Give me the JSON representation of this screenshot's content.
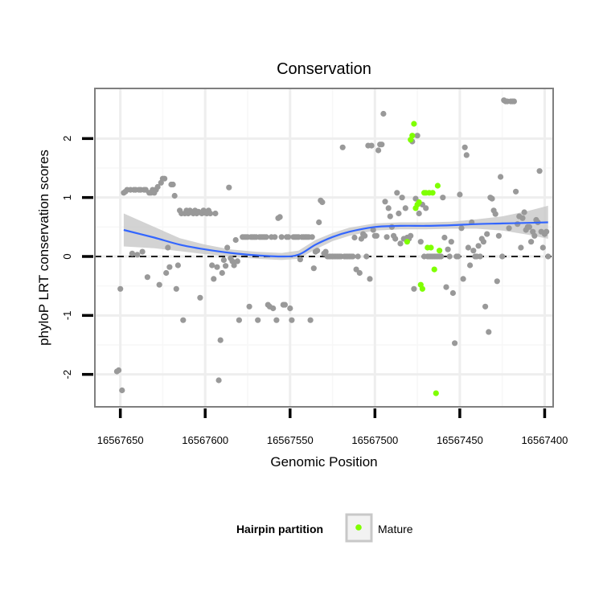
{
  "chart_data": {
    "type": "scatter",
    "title": "Conservation",
    "xlabel": "Genomic Position",
    "ylabel": "phyloP LRT conservation scores",
    "x_reversed": true,
    "xlim": [
      16567665,
      16567395
    ],
    "ylim": [
      -2.55,
      2.85
    ],
    "x_ticks": [
      16567650,
      16567600,
      16567550,
      16567500,
      16567450,
      16567400
    ],
    "x_tick_labels": [
      "16567650",
      "16567600",
      "16567550",
      "16567500",
      "16567450",
      "16567400"
    ],
    "y_ticks": [
      -2,
      -1,
      0,
      1,
      2
    ],
    "y_tick_labels": [
      "-2",
      "-1",
      "0",
      "1",
      "2"
    ],
    "reference_line": {
      "y": 0,
      "style": "dashed"
    },
    "grid": true,
    "colors": {
      "other": "#999999",
      "mature": "#7fff00",
      "smooth": "#3366ff",
      "band": "#c8c8c8",
      "panel_border": "#7f7f7f"
    },
    "legend": {
      "title": "Hairpin partition",
      "position": "bottom",
      "entries": [
        "Mature"
      ]
    },
    "series": [
      {
        "name": "",
        "color": "#999999",
        "points": [
          [
            16567652,
            -1.95
          ],
          [
            16567651,
            -1.93
          ],
          [
            16567650,
            -0.55
          ],
          [
            16567649,
            -2.27
          ],
          [
            16567648,
            1.08
          ],
          [
            16567647,
            1.1
          ],
          [
            16567646,
            1.13
          ],
          [
            16567644,
            1.13
          ],
          [
            16567643,
            0.05
          ],
          [
            16567642,
            1.13
          ],
          [
            16567641,
            1.13
          ],
          [
            16567640,
            0.03
          ],
          [
            16567639,
            1.13
          ],
          [
            16567638,
            1.13
          ],
          [
            16567637,
            0.08
          ],
          [
            16567636,
            1.13
          ],
          [
            16567635,
            1.13
          ],
          [
            16567634,
            -0.35
          ],
          [
            16567633,
            1.08
          ],
          [
            16567632,
            1.08
          ],
          [
            16567631,
            1.13
          ],
          [
            16567630,
            1.08
          ],
          [
            16567629,
            1.13
          ],
          [
            16567628,
            1.18
          ],
          [
            16567627,
            -0.48
          ],
          [
            16567626,
            1.25
          ],
          [
            16567625,
            1.32
          ],
          [
            16567624,
            1.32
          ],
          [
            16567623,
            -0.28
          ],
          [
            16567622,
            0.15
          ],
          [
            16567621,
            -0.18
          ],
          [
            16567620,
            1.22
          ],
          [
            16567619,
            1.22
          ],
          [
            16567618,
            1.03
          ],
          [
            16567617,
            -0.55
          ],
          [
            16567616,
            -0.15
          ],
          [
            16567615,
            0.78
          ],
          [
            16567614,
            0.73
          ],
          [
            16567613,
            -1.08
          ],
          [
            16567612,
            0.73
          ],
          [
            16567611,
            0.78
          ],
          [
            16567610,
            0.73
          ],
          [
            16567609,
            0.78
          ],
          [
            16567608,
            0.75
          ],
          [
            16567607,
            0.73
          ],
          [
            16567606,
            0.78
          ],
          [
            16567605,
            0.73
          ],
          [
            16567604,
            0.76
          ],
          [
            16567603,
            -0.7
          ],
          [
            16567602,
            0.73
          ],
          [
            16567601,
            0.78
          ],
          [
            16567600,
            0.74
          ],
          [
            16567599,
            0.73
          ],
          [
            16567598,
            0.78
          ],
          [
            16567597,
            0.73
          ],
          [
            16567596,
            -0.15
          ],
          [
            16567595,
            -0.38
          ],
          [
            16567594,
            0.73
          ],
          [
            16567593,
            -0.18
          ],
          [
            16567592,
            -2.1
          ],
          [
            16567591,
            -1.42
          ],
          [
            16567590,
            -0.28
          ],
          [
            16567589,
            -0.06
          ],
          [
            16567588,
            -0.16
          ],
          [
            16567587,
            0.15
          ],
          [
            16567586,
            1.17
          ],
          [
            16567585,
            -0.03
          ],
          [
            16567584,
            -0.08
          ],
          [
            16567583,
            -0.15
          ],
          [
            16567582,
            0.28
          ],
          [
            16567581,
            -0.08
          ],
          [
            16567580,
            -1.08
          ],
          [
            16567578,
            0.33
          ],
          [
            16567577,
            0.33
          ],
          [
            16567576,
            0.33
          ],
          [
            16567575,
            0.33
          ],
          [
            16567574,
            -0.85
          ],
          [
            16567573,
            0.33
          ],
          [
            16567572,
            0.33
          ],
          [
            16567571,
            0.33
          ],
          [
            16567570,
            0.33
          ],
          [
            16567569,
            -1.08
          ],
          [
            16567568,
            0.33
          ],
          [
            16567567,
            0.33
          ],
          [
            16567566,
            0.33
          ],
          [
            16567565,
            0.33
          ],
          [
            16567564,
            0.33
          ],
          [
            16567563,
            -0.82
          ],
          [
            16567562,
            -0.85
          ],
          [
            16567561,
            0.33
          ],
          [
            16567560,
            -0.88
          ],
          [
            16567559,
            0.33
          ],
          [
            16567558,
            -1.08
          ],
          [
            16567557,
            0.65
          ],
          [
            16567556,
            0.67
          ],
          [
            16567555,
            0.33
          ],
          [
            16567554,
            -0.82
          ],
          [
            16567553,
            -0.82
          ],
          [
            16567552,
            0.33
          ],
          [
            16567551,
            0.33
          ],
          [
            16567550,
            -0.88
          ],
          [
            16567549,
            -1.08
          ],
          [
            16567548,
            0.33
          ],
          [
            16567547,
            0.33
          ],
          [
            16567546,
            0.33
          ],
          [
            16567545,
            0.33
          ],
          [
            16567544,
            -0.05
          ],
          [
            16567543,
            0.33
          ],
          [
            16567542,
            0.33
          ],
          [
            16567541,
            0.33
          ],
          [
            16567540,
            0.33
          ],
          [
            16567539,
            0.33
          ],
          [
            16567538,
            -1.08
          ],
          [
            16567537,
            0.33
          ],
          [
            16567536,
            -0.2
          ],
          [
            16567535,
            0.08
          ],
          [
            16567534,
            0.1
          ],
          [
            16567533,
            0.58
          ],
          [
            16567532,
            0.95
          ],
          [
            16567531,
            0.92
          ],
          [
            16567530,
            0.05
          ],
          [
            16567529,
            0.08
          ],
          [
            16567528,
            0.0
          ],
          [
            16567527,
            0.0
          ],
          [
            16567526,
            0.0
          ],
          [
            16567525,
            0.0
          ],
          [
            16567524,
            0.0
          ],
          [
            16567523,
            0.0
          ],
          [
            16567522,
            0.0
          ],
          [
            16567521,
            0.0
          ],
          [
            16567520,
            0.0
          ],
          [
            16567519,
            1.85
          ],
          [
            16567518,
            0.0
          ],
          [
            16567517,
            0.0
          ],
          [
            16567516,
            0.0
          ],
          [
            16567515,
            0.0
          ],
          [
            16567514,
            0.0
          ],
          [
            16567513,
            0.0
          ],
          [
            16567512,
            0.32
          ],
          [
            16567511,
            -0.22
          ],
          [
            16567510,
            0.0
          ],
          [
            16567509,
            -0.28
          ],
          [
            16567508,
            0.3
          ],
          [
            16567507,
            0.38
          ],
          [
            16567506,
            0.35
          ],
          [
            16567505,
            0.0
          ],
          [
            16567504,
            1.88
          ],
          [
            16567503,
            -0.38
          ],
          [
            16567502,
            1.88
          ],
          [
            16567501,
            0.45
          ],
          [
            16567500,
            0.35
          ],
          [
            16567499,
            0.35
          ],
          [
            16567498,
            1.8
          ],
          [
            16567497,
            1.9
          ],
          [
            16567496,
            1.9
          ],
          [
            16567495,
            2.42
          ],
          [
            16567494,
            0.93
          ],
          [
            16567493,
            0.33
          ],
          [
            16567492,
            0.82
          ],
          [
            16567491,
            0.68
          ],
          [
            16567490,
            0.5
          ],
          [
            16567489,
            0.35
          ],
          [
            16567488,
            0.3
          ],
          [
            16567487,
            1.08
          ],
          [
            16567486,
            0.73
          ],
          [
            16567485,
            0.22
          ],
          [
            16567484,
            1.0
          ],
          [
            16567483,
            0.3
          ],
          [
            16567482,
            0.82
          ],
          [
            16567481,
            0.32
          ],
          [
            16567480,
            0.3
          ],
          [
            16567479,
            0.35
          ],
          [
            16567478,
            1.95
          ],
          [
            16567477,
            -0.55
          ],
          [
            16567476,
            0.98
          ],
          [
            16567475,
            2.05
          ],
          [
            16567474,
            0.73
          ],
          [
            16567473,
            0.25
          ],
          [
            16567472,
            0.88
          ],
          [
            16567471,
            0.0
          ],
          [
            16567470,
            0.82
          ],
          [
            16567469,
            0.0
          ],
          [
            16567468,
            0.0
          ],
          [
            16567467,
            0.0
          ],
          [
            16567466,
            0.0
          ],
          [
            16567465,
            0.0
          ],
          [
            16567464,
            0.0
          ],
          [
            16567463,
            0.0
          ],
          [
            16567462,
            0.0
          ],
          [
            16567461,
            0.0
          ],
          [
            16567460,
            1.0
          ],
          [
            16567459,
            0.32
          ],
          [
            16567458,
            -0.52
          ],
          [
            16567457,
            0.12
          ],
          [
            16567456,
            0.0
          ],
          [
            16567455,
            0.25
          ],
          [
            16567454,
            -0.62
          ],
          [
            16567453,
            -1.47
          ],
          [
            16567452,
            0.0
          ],
          [
            16567451,
            0.0
          ],
          [
            16567450,
            1.05
          ],
          [
            16567449,
            0.48
          ],
          [
            16567448,
            -0.38
          ],
          [
            16567447,
            1.85
          ],
          [
            16567446,
            1.72
          ],
          [
            16567445,
            0.15
          ],
          [
            16567444,
            -0.15
          ],
          [
            16567443,
            0.58
          ],
          [
            16567442,
            0.1
          ],
          [
            16567441,
            0.0
          ],
          [
            16567440,
            0.0
          ],
          [
            16567439,
            0.18
          ],
          [
            16567438,
            0.0
          ],
          [
            16567437,
            0.3
          ],
          [
            16567436,
            0.25
          ],
          [
            16567435,
            -0.85
          ],
          [
            16567434,
            0.38
          ],
          [
            16567433,
            -1.28
          ],
          [
            16567432,
            1.0
          ],
          [
            16567431,
            0.98
          ],
          [
            16567430,
            0.78
          ],
          [
            16567429,
            0.72
          ],
          [
            16567428,
            -0.42
          ],
          [
            16567427,
            0.35
          ],
          [
            16567426,
            1.35
          ],
          [
            16567425,
            0.0
          ],
          [
            16567424,
            2.65
          ],
          [
            16567423,
            2.63
          ],
          [
            16567422,
            2.63
          ],
          [
            16567421,
            0.48
          ],
          [
            16567420,
            2.63
          ],
          [
            16567419,
            2.63
          ],
          [
            16567418,
            2.63
          ],
          [
            16567417,
            1.1
          ],
          [
            16567416,
            0.55
          ],
          [
            16567415,
            0.68
          ],
          [
            16567414,
            0.15
          ],
          [
            16567413,
            0.65
          ],
          [
            16567412,
            0.75
          ],
          [
            16567411,
            0.45
          ],
          [
            16567410,
            0.5
          ],
          [
            16567409,
            0.5
          ],
          [
            16567408,
            0.25
          ],
          [
            16567407,
            0.42
          ],
          [
            16567406,
            0.35
          ],
          [
            16567405,
            0.62
          ],
          [
            16567404,
            0.58
          ],
          [
            16567403,
            1.45
          ],
          [
            16567402,
            0.42
          ],
          [
            16567401,
            0.15
          ],
          [
            16567400,
            0.38
          ],
          [
            16567399,
            0.42
          ],
          [
            16567398,
            0.0
          ]
        ]
      },
      {
        "name": "Mature",
        "color": "#7fff00",
        "points": [
          [
            16567481,
            0.25
          ],
          [
            16567479,
            1.98
          ],
          [
            16567478,
            2.05
          ],
          [
            16567477,
            2.25
          ],
          [
            16567476,
            0.82
          ],
          [
            16567475,
            0.88
          ],
          [
            16567474,
            0.92
          ],
          [
            16567473,
            -0.48
          ],
          [
            16567472,
            -0.55
          ],
          [
            16567471,
            1.08
          ],
          [
            16567470,
            1.08
          ],
          [
            16567469,
            0.15
          ],
          [
            16567468,
            1.08
          ],
          [
            16567467,
            0.15
          ],
          [
            16567466,
            1.08
          ],
          [
            16567465,
            -0.22
          ],
          [
            16567464,
            -2.32
          ],
          [
            16567463,
            1.2
          ],
          [
            16567462,
            0.1
          ]
        ]
      }
    ],
    "smooth": {
      "x": [
        16567648,
        16567630,
        16567615,
        16567600,
        16567585,
        16567570,
        16567555,
        16567545,
        16567535,
        16567525,
        16567515,
        16567500,
        16567485,
        16567470,
        16567455,
        16567440,
        16567425,
        16567410,
        16567398
      ],
      "y": [
        0.45,
        0.32,
        0.2,
        0.12,
        0.06,
        0.02,
        0.0,
        0.03,
        0.2,
        0.33,
        0.42,
        0.5,
        0.52,
        0.52,
        0.53,
        0.55,
        0.56,
        0.57,
        0.58
      ],
      "band_half_width": [
        0.28,
        0.18,
        0.11,
        0.08,
        0.06,
        0.06,
        0.06,
        0.07,
        0.08,
        0.07,
        0.07,
        0.06,
        0.06,
        0.06,
        0.06,
        0.08,
        0.12,
        0.2,
        0.28
      ]
    }
  }
}
